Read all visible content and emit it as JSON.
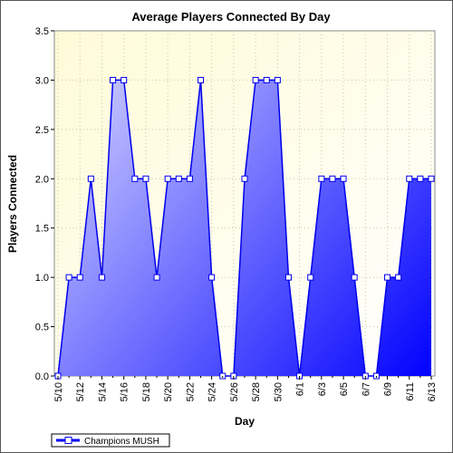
{
  "chart_data": {
    "type": "area",
    "title": "Average Players Connected By Day",
    "xlabel": "Day",
    "ylabel": "Players Connected",
    "ylim": [
      0,
      3.5
    ],
    "yticks": [
      "0.0",
      "0.5",
      "1.0",
      "1.5",
      "2.0",
      "2.5",
      "3.0",
      "3.5"
    ],
    "x": [
      "5/10",
      "5/11",
      "5/12",
      "5/13",
      "5/14",
      "5/15",
      "5/16",
      "5/17",
      "5/18",
      "5/19",
      "5/20",
      "5/21",
      "5/22",
      "5/23",
      "5/24",
      "5/25",
      "5/26",
      "5/27",
      "5/28",
      "5/29",
      "5/30",
      "5/31",
      "6/1",
      "6/2",
      "6/3",
      "6/4",
      "6/5",
      "6/6",
      "6/7",
      "6/8",
      "6/9",
      "6/10",
      "6/11",
      "6/12",
      "6/13"
    ],
    "xtick_labels": [
      "5/10",
      "5/12",
      "5/14",
      "5/16",
      "5/18",
      "5/20",
      "5/22",
      "5/24",
      "5/26",
      "5/28",
      "5/30",
      "6/1",
      "6/3",
      "6/5",
      "6/7",
      "6/9",
      "6/11",
      "6/13"
    ],
    "series": [
      {
        "name": "Champions MUSH",
        "values": [
          0,
          1,
          1,
          2,
          1,
          3,
          3,
          2,
          2,
          1,
          2,
          2,
          2,
          3,
          1,
          0,
          0,
          2,
          3,
          3,
          3,
          1,
          0,
          1,
          2,
          2,
          2,
          1,
          0,
          0,
          1,
          1,
          2,
          2,
          2
        ]
      }
    ],
    "grid": true,
    "legend": "bottom-left",
    "colors": {
      "plot_bg_top": "#fffbd8",
      "plot_bg_bottom": "#ffffff",
      "line": "#0000ee",
      "fill_start": "#d8d8ff",
      "fill_end": "#0000ff",
      "grid": "#c8c8a0"
    }
  }
}
